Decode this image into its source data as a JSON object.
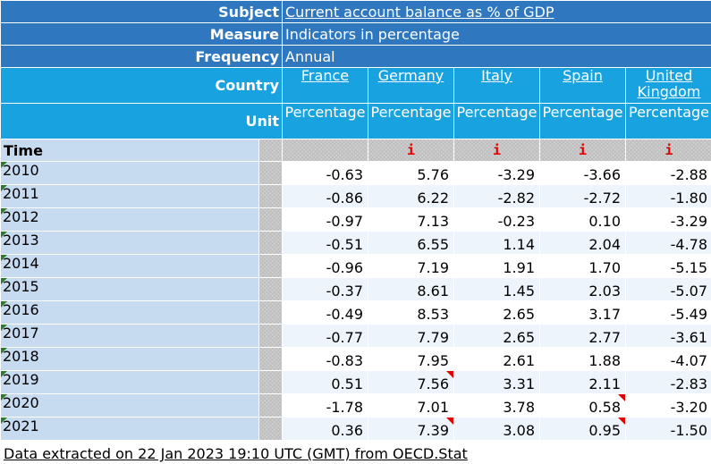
{
  "header": {
    "subject_label": "Subject",
    "subject_value": "Current account balance as % of GDP",
    "measure_label": "Measure",
    "measure_value": "Indicators in percentage",
    "frequency_label": "Frequency",
    "frequency_value": "Annual",
    "country_label": "Country",
    "unit_label": "Unit",
    "time_label": "Time"
  },
  "countries": [
    {
      "name": "France",
      "unit": "Percentage",
      "flag": ""
    },
    {
      "name": "Germany",
      "unit": "Percentage",
      "flag": "i"
    },
    {
      "name": "Italy",
      "unit": "Percentage",
      "flag": "i"
    },
    {
      "name": "Spain",
      "unit": "Percentage",
      "flag": "i"
    },
    {
      "name": "United Kingdom",
      "unit": "Percentage",
      "flag": "i"
    }
  ],
  "rows": [
    {
      "year": "2010",
      "values": [
        "-0.63",
        "5.76",
        "-3.29",
        "-3.66",
        "-2.88"
      ],
      "notes": [
        false,
        false,
        false,
        false,
        false
      ]
    },
    {
      "year": "2011",
      "values": [
        "-0.86",
        "6.22",
        "-2.82",
        "-2.72",
        "-1.80"
      ],
      "notes": [
        false,
        false,
        false,
        false,
        false
      ]
    },
    {
      "year": "2012",
      "values": [
        "-0.97",
        "7.13",
        "-0.23",
        "0.10",
        "-3.29"
      ],
      "notes": [
        false,
        false,
        false,
        false,
        false
      ]
    },
    {
      "year": "2013",
      "values": [
        "-0.51",
        "6.55",
        "1.14",
        "2.04",
        "-4.78"
      ],
      "notes": [
        false,
        false,
        false,
        false,
        false
      ]
    },
    {
      "year": "2014",
      "values": [
        "-0.96",
        "7.19",
        "1.91",
        "1.70",
        "-5.15"
      ],
      "notes": [
        false,
        false,
        false,
        false,
        false
      ]
    },
    {
      "year": "2015",
      "values": [
        "-0.37",
        "8.61",
        "1.45",
        "2.03",
        "-5.07"
      ],
      "notes": [
        false,
        false,
        false,
        false,
        false
      ]
    },
    {
      "year": "2016",
      "values": [
        "-0.49",
        "8.53",
        "2.65",
        "3.17",
        "-5.49"
      ],
      "notes": [
        false,
        false,
        false,
        false,
        false
      ]
    },
    {
      "year": "2017",
      "values": [
        "-0.77",
        "7.79",
        "2.65",
        "2.77",
        "-3.61"
      ],
      "notes": [
        false,
        false,
        false,
        false,
        false
      ]
    },
    {
      "year": "2018",
      "values": [
        "-0.83",
        "7.95",
        "2.61",
        "1.88",
        "-4.07"
      ],
      "notes": [
        false,
        false,
        false,
        false,
        false
      ]
    },
    {
      "year": "2019",
      "values": [
        "0.51",
        "7.56",
        "3.31",
        "2.11",
        "-2.83"
      ],
      "notes": [
        false,
        true,
        false,
        false,
        false
      ]
    },
    {
      "year": "2020",
      "values": [
        "-1.78",
        "7.01",
        "3.78",
        "0.58",
        "-3.20"
      ],
      "notes": [
        false,
        false,
        false,
        true,
        false
      ]
    },
    {
      "year": "2021",
      "values": [
        "0.36",
        "7.39",
        "3.08",
        "0.95",
        "-1.50"
      ],
      "notes": [
        false,
        true,
        false,
        true,
        false
      ]
    }
  ],
  "footer": {
    "text": "Data extracted on 22 Jan 2023 19:10 UTC (GMT) from OECD.Stat"
  },
  "colors": {
    "header_blue": "#2f78c0",
    "country_blue": "#19a2e0",
    "row_label_blue": "#c6daf0",
    "note_red": "#e00000",
    "corner_green": "#2a7d2a"
  }
}
